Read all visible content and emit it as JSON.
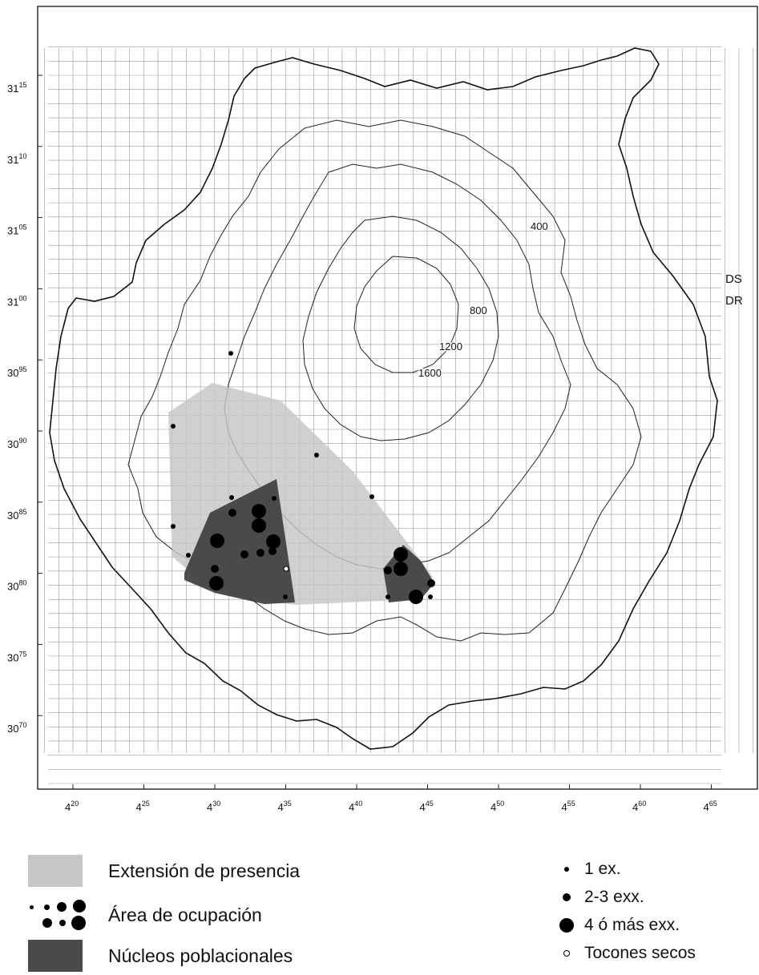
{
  "map": {
    "y_ticks": [
      {
        "base": "31",
        "sup": "15"
      },
      {
        "base": "31",
        "sup": "10"
      },
      {
        "base": "31",
        "sup": "05"
      },
      {
        "base": "31",
        "sup": "00"
      },
      {
        "base": "30",
        "sup": "95"
      },
      {
        "base": "30",
        "sup": "90"
      },
      {
        "base": "30",
        "sup": "85"
      },
      {
        "base": "30",
        "sup": "80"
      },
      {
        "base": "30",
        "sup": "75"
      },
      {
        "base": "30",
        "sup": "70"
      }
    ],
    "x_ticks": [
      {
        "base": "4",
        "sup": "20"
      },
      {
        "base": "4",
        "sup": "25"
      },
      {
        "base": "4",
        "sup": "30"
      },
      {
        "base": "4",
        "sup": "35"
      },
      {
        "base": "4",
        "sup": "40"
      },
      {
        "base": "4",
        "sup": "45"
      },
      {
        "base": "4",
        "sup": "50"
      },
      {
        "base": "4",
        "sup": "55"
      },
      {
        "base": "4",
        "sup": "60"
      },
      {
        "base": "4",
        "sup": "65"
      }
    ],
    "zone_labels": [
      "DS",
      "DR"
    ],
    "contour_labels": [
      "400",
      "800",
      "1200",
      "1600"
    ],
    "colors": {
      "presence": "#c6c6c6",
      "nucleus": "#3e3e3e",
      "grid": "#9a9a9a",
      "outline": "#111111"
    }
  },
  "legend": {
    "presence_label": "Extensión de presencia",
    "occupation_label": "Área de ocupación",
    "nuclei_label": "Núcleos poblacionales",
    "one_label": "1 ex.",
    "two_three_label": "2-3 exx.",
    "four_more_label": "4 ó más exx.",
    "stumps_label": "Tocones secos"
  }
}
